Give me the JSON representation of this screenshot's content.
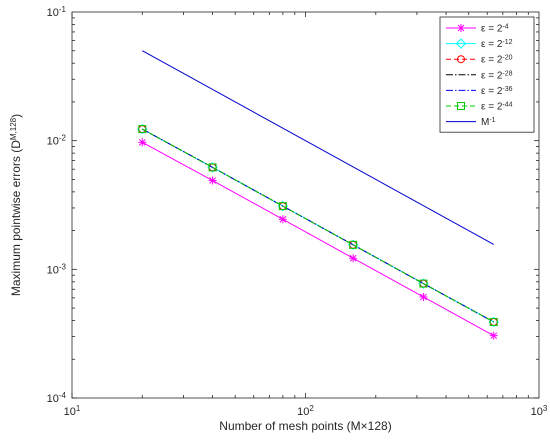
{
  "chart_data": {
    "type": "line",
    "xscale": "log",
    "yscale": "log",
    "xlim": [
      10,
      1000
    ],
    "ylim": [
      0.0001,
      0.1
    ],
    "grid": false,
    "legend_position": "top-right",
    "xlabel": "Number of mesh points (M×128)",
    "ylabel_main": "Maximum pointwise errors (D",
    "ylabel_sup": "M,128",
    "ylabel_close": ")",
    "x_ticks": [
      {
        "value": 10,
        "base": "10",
        "exp": "1"
      },
      {
        "value": 100,
        "base": "10",
        "exp": "2"
      },
      {
        "value": 1000,
        "base": "10",
        "exp": "3"
      }
    ],
    "y_ticks": [
      {
        "value": 0.0001,
        "base": "10",
        "exp": "-4"
      },
      {
        "value": 0.001,
        "base": "10",
        "exp": "-3"
      },
      {
        "value": 0.01,
        "base": "10",
        "exp": "-2"
      },
      {
        "value": 0.1,
        "base": "10",
        "exp": "-1"
      }
    ],
    "series": [
      {
        "name": "ε = 2",
        "name_exp": "-4",
        "color": "#ff00ff",
        "dash": "",
        "marker": "asterisk",
        "x": [
          20,
          40,
          80,
          160,
          320,
          640
        ],
        "y": [
          0.0097,
          0.0049,
          0.00245,
          0.00122,
          0.00061,
          0.000305
        ]
      },
      {
        "name": "ε = 2",
        "name_exp": "-12",
        "color": "#00ffff",
        "dash": "",
        "marker": "diamond",
        "x": [
          20,
          40,
          80,
          160,
          320,
          640
        ],
        "y": [
          0.0123,
          0.0062,
          0.0031,
          0.00155,
          0.000775,
          0.00039
        ]
      },
      {
        "name": "ε = 2",
        "name_exp": "-20",
        "color": "#ff0000",
        "dash": "5,3",
        "marker": "circle",
        "x": [
          20,
          40,
          80,
          160,
          320,
          640
        ],
        "y": [
          0.0123,
          0.0062,
          0.0031,
          0.00155,
          0.000775,
          0.00039
        ]
      },
      {
        "name": "ε = 2",
        "name_exp": "-28",
        "color": "#000000",
        "dash": "7,2,1.5,2",
        "marker": "",
        "x": [
          20,
          40,
          80,
          160,
          320,
          640
        ],
        "y": [
          0.0123,
          0.0062,
          0.0031,
          0.00155,
          0.000775,
          0.00039
        ]
      },
      {
        "name": "ε = 2",
        "name_exp": "-36",
        "color": "#0000ff",
        "dash": "7,2,1.5,2",
        "marker": "",
        "x": [
          20,
          40,
          80,
          160,
          320,
          640
        ],
        "y": [
          0.0123,
          0.0062,
          0.0031,
          0.00155,
          0.000775,
          0.00039
        ]
      },
      {
        "name": "ε = 2",
        "name_exp": "-44",
        "color": "#00cc00",
        "dash": "5,3",
        "marker": "square",
        "x": [
          20,
          40,
          80,
          160,
          320,
          640
        ],
        "y": [
          0.0123,
          0.0062,
          0.0031,
          0.00155,
          0.000775,
          0.00039
        ]
      },
      {
        "name": "M",
        "name_exp": "-1",
        "color": "#0000cd",
        "dash": "",
        "marker": "",
        "x": [
          20,
          640
        ],
        "y": [
          0.05,
          0.0015625
        ]
      }
    ]
  }
}
